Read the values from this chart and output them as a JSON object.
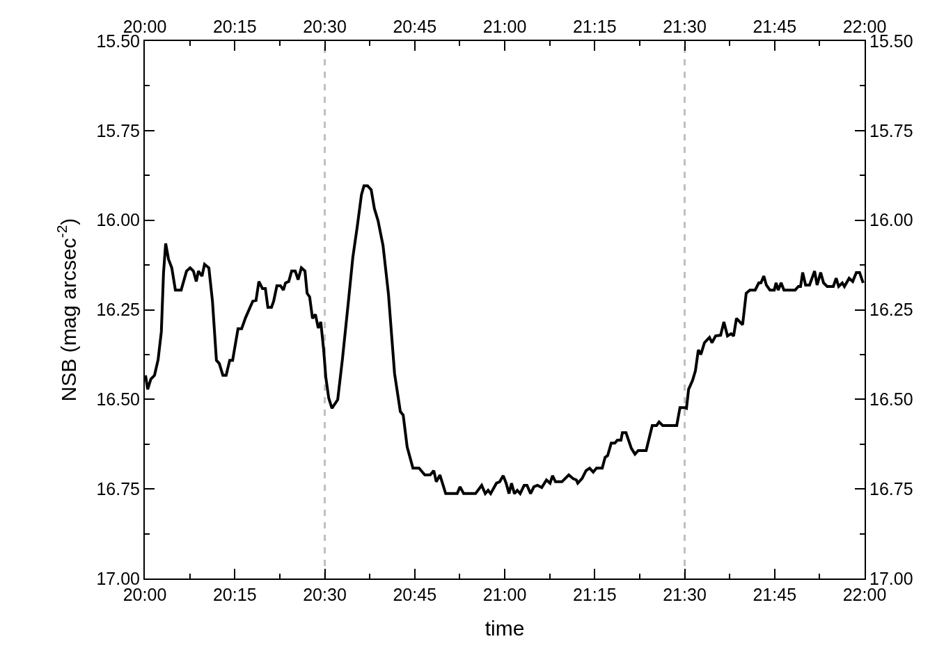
{
  "chart_data": {
    "type": "line",
    "xlabel": "time",
    "ylabel": "NSB (mag arcsec$^{-2}$)",
    "x": [
      20.002,
      20.008,
      20.017,
      20.027,
      20.037,
      20.046,
      20.052,
      20.058,
      20.066,
      20.075,
      20.085,
      20.101,
      20.116,
      20.126,
      20.135,
      20.143,
      20.149,
      20.159,
      20.166,
      20.178,
      20.188,
      20.199,
      20.207,
      20.217,
      20.226,
      20.236,
      20.244,
      20.259,
      20.269,
      20.28,
      20.3,
      20.309,
      20.317,
      20.327,
      20.335,
      20.342,
      20.352,
      20.358,
      20.367,
      20.377,
      20.385,
      20.391,
      20.4,
      20.408,
      20.418,
      20.426,
      20.435,
      20.445,
      20.451,
      20.458,
      20.466,
      20.474,
      20.482,
      20.489,
      20.497,
      20.503,
      20.511,
      20.52,
      20.536,
      20.549,
      20.565,
      20.578,
      20.59,
      20.602,
      20.609,
      20.619,
      20.629,
      20.638,
      20.648,
      20.662,
      20.677,
      20.694,
      20.71,
      20.718,
      20.729,
      20.745,
      20.762,
      20.778,
      20.793,
      20.803,
      20.81,
      20.82,
      20.836,
      20.868,
      20.876,
      20.886,
      20.919,
      20.936,
      20.946,
      20.954,
      20.961,
      20.977,
      20.986,
      20.996,
      21.004,
      21.012,
      21.019,
      21.027,
      21.035,
      21.043,
      21.054,
      21.062,
      21.072,
      21.081,
      21.091,
      21.103,
      21.116,
      21.126,
      21.133,
      21.141,
      21.159,
      21.178,
      21.19,
      21.199,
      21.203,
      21.215,
      21.226,
      21.236,
      21.246,
      21.255,
      21.271,
      21.279,
      21.286,
      21.296,
      21.306,
      21.313,
      21.323,
      21.327,
      21.337,
      21.352,
      21.362,
      21.371,
      21.393,
      21.41,
      21.422,
      21.429,
      21.439,
      21.478,
      21.487,
      21.499,
      21.505,
      21.511,
      21.522,
      21.53,
      21.538,
      21.545,
      21.555,
      21.569,
      21.576,
      21.586,
      21.6,
      21.609,
      21.619,
      21.629,
      21.636,
      21.644,
      21.661,
      21.671,
      21.681,
      21.696,
      21.706,
      21.712,
      21.72,
      21.727,
      21.737,
      21.749,
      21.754,
      21.76,
      21.768,
      21.776,
      21.807,
      21.816,
      21.822,
      21.828,
      21.836,
      21.847,
      21.861,
      21.868,
      21.878,
      21.886,
      21.896,
      21.913,
      21.921,
      21.928,
      21.938,
      21.944,
      21.957,
      21.967,
      21.977,
      21.986,
      21.996
    ],
    "series": [
      {
        "color": "#000000",
        "values": [
          16.433,
          16.472,
          16.443,
          16.433,
          16.389,
          16.311,
          16.148,
          16.065,
          16.109,
          16.133,
          16.195,
          16.195,
          16.142,
          16.133,
          16.142,
          16.171,
          16.142,
          16.156,
          16.123,
          16.133,
          16.226,
          16.391,
          16.4,
          16.433,
          16.433,
          16.391,
          16.391,
          16.303,
          16.303,
          16.272,
          16.226,
          16.224,
          16.171,
          16.191,
          16.191,
          16.243,
          16.243,
          16.226,
          16.183,
          16.183,
          16.195,
          16.175,
          16.171,
          16.142,
          16.142,
          16.166,
          16.133,
          16.142,
          16.204,
          16.214,
          16.274,
          16.263,
          16.301,
          16.284,
          16.362,
          16.439,
          16.496,
          16.525,
          16.501,
          16.389,
          16.234,
          16.104,
          16.02,
          15.929,
          15.904,
          15.904,
          15.915,
          15.968,
          16.001,
          16.071,
          16.206,
          16.428,
          16.534,
          16.544,
          16.633,
          16.692,
          16.692,
          16.711,
          16.711,
          16.699,
          16.73,
          16.711,
          16.763,
          16.763,
          16.744,
          16.763,
          16.763,
          16.74,
          16.763,
          16.754,
          16.763,
          16.734,
          16.73,
          16.713,
          16.734,
          16.763,
          16.734,
          16.763,
          16.754,
          16.763,
          16.74,
          16.74,
          16.763,
          16.744,
          16.74,
          16.746,
          16.725,
          16.734,
          16.713,
          16.73,
          16.73,
          16.711,
          16.721,
          16.725,
          16.734,
          16.721,
          16.699,
          16.692,
          16.703,
          16.692,
          16.692,
          16.662,
          16.657,
          16.622,
          16.622,
          16.614,
          16.614,
          16.593,
          16.593,
          16.637,
          16.653,
          16.643,
          16.643,
          16.573,
          16.573,
          16.563,
          16.573,
          16.573,
          16.523,
          16.523,
          16.525,
          16.472,
          16.447,
          16.42,
          16.362,
          16.375,
          16.342,
          16.327,
          16.342,
          16.323,
          16.321,
          16.284,
          16.323,
          16.317,
          16.323,
          16.274,
          16.292,
          16.204,
          16.195,
          16.195,
          16.175,
          16.175,
          16.156,
          16.181,
          16.195,
          16.195,
          16.175,
          16.195,
          16.175,
          16.195,
          16.195,
          16.185,
          16.185,
          16.146,
          16.181,
          16.181,
          16.142,
          16.181,
          16.146,
          16.175,
          16.185,
          16.185,
          16.162,
          16.185,
          16.175,
          16.185,
          16.162,
          16.171,
          16.146,
          16.146,
          16.175
        ]
      }
    ],
    "xlim": [
      20,
      22
    ],
    "xticks": [
      {
        "value": 20,
        "label": "20:00"
      },
      {
        "value": 20.125,
        "label": null
      },
      {
        "value": 20.25,
        "label": "20:15"
      },
      {
        "value": 20.375,
        "label": null
      },
      {
        "value": 20.5,
        "label": "20:30"
      },
      {
        "value": 20.625,
        "label": null
      },
      {
        "value": 20.75,
        "label": "20:45"
      },
      {
        "value": 20.875,
        "label": null
      },
      {
        "value": 21,
        "label": "21:00"
      },
      {
        "value": 21.125,
        "label": null
      },
      {
        "value": 21.25,
        "label": "21:15"
      },
      {
        "value": 21.375,
        "label": null
      },
      {
        "value": 21.5,
        "label": "21:30"
      },
      {
        "value": 21.625,
        "label": null
      },
      {
        "value": 21.75,
        "label": "21:45"
      },
      {
        "value": 21.875,
        "label": null
      },
      {
        "value": 22,
        "label": "22:00"
      }
    ],
    "x2lim": [
      20,
      22
    ],
    "x2ticks": [
      {
        "value": 20,
        "label": "20:00"
      },
      {
        "value": 20.125,
        "label": null
      },
      {
        "value": 20.25,
        "label": "20:15"
      },
      {
        "value": 20.375,
        "label": null
      },
      {
        "value": 20.5,
        "label": "20:30"
      },
      {
        "value": 20.625,
        "label": null
      },
      {
        "value": 20.75,
        "label": "20:45"
      },
      {
        "value": 20.875,
        "label": null
      },
      {
        "value": 21,
        "label": "21:00"
      },
      {
        "value": 21.125,
        "label": null
      },
      {
        "value": 21.25,
        "label": "21:15"
      },
      {
        "value": 21.375,
        "label": null
      },
      {
        "value": 21.5,
        "label": "21:30"
      },
      {
        "value": 21.625,
        "label": null
      },
      {
        "value": 21.75,
        "label": "21:45"
      },
      {
        "value": 21.875,
        "label": null
      },
      {
        "value": 22,
        "label": "22:00"
      }
    ],
    "ylim": [
      17.0,
      15.5
    ],
    "yticks": [
      {
        "value": 15.5,
        "label": "15.50"
      },
      {
        "value": 15.625,
        "label": null
      },
      {
        "value": 15.75,
        "label": "15.75"
      },
      {
        "value": 15.875,
        "label": null
      },
      {
        "value": 16.0,
        "label": "16.00"
      },
      {
        "value": 16.125,
        "label": null
      },
      {
        "value": 16.25,
        "label": "16.25"
      },
      {
        "value": 16.375,
        "label": null
      },
      {
        "value": 16.5,
        "label": "16.50"
      },
      {
        "value": 16.625,
        "label": null
      },
      {
        "value": 16.75,
        "label": "16.75"
      },
      {
        "value": 16.875,
        "label": null
      },
      {
        "value": 17.0,
        "label": "17.00"
      }
    ],
    "y2lim": [
      17.0,
      15.5
    ],
    "y2ticks": [
      {
        "value": 15.5,
        "label": "15.50"
      },
      {
        "value": 15.625,
        "label": null
      },
      {
        "value": 15.75,
        "label": "15.75"
      },
      {
        "value": 15.875,
        "label": null
      },
      {
        "value": 16.0,
        "label": "16.00"
      },
      {
        "value": 16.125,
        "label": null
      },
      {
        "value": 16.25,
        "label": "16.25"
      },
      {
        "value": 16.375,
        "label": null
      },
      {
        "value": 16.5,
        "label": "16.50"
      },
      {
        "value": 16.625,
        "label": null
      },
      {
        "value": 16.75,
        "label": "16.75"
      },
      {
        "value": 16.875,
        "label": null
      },
      {
        "value": 17.0,
        "label": "17.00"
      }
    ],
    "ref_lines": [
      {
        "axis": "x",
        "value": 20.5,
        "label": null,
        "color": "#c0c0c0",
        "line_style": "dashed"
      },
      {
        "axis": "x",
        "value": 21.5,
        "label": null,
        "color": "#c0c0c0",
        "line_style": "dashed"
      }
    ],
    "grid": false,
    "marker": "none",
    "line_style": "solid"
  }
}
